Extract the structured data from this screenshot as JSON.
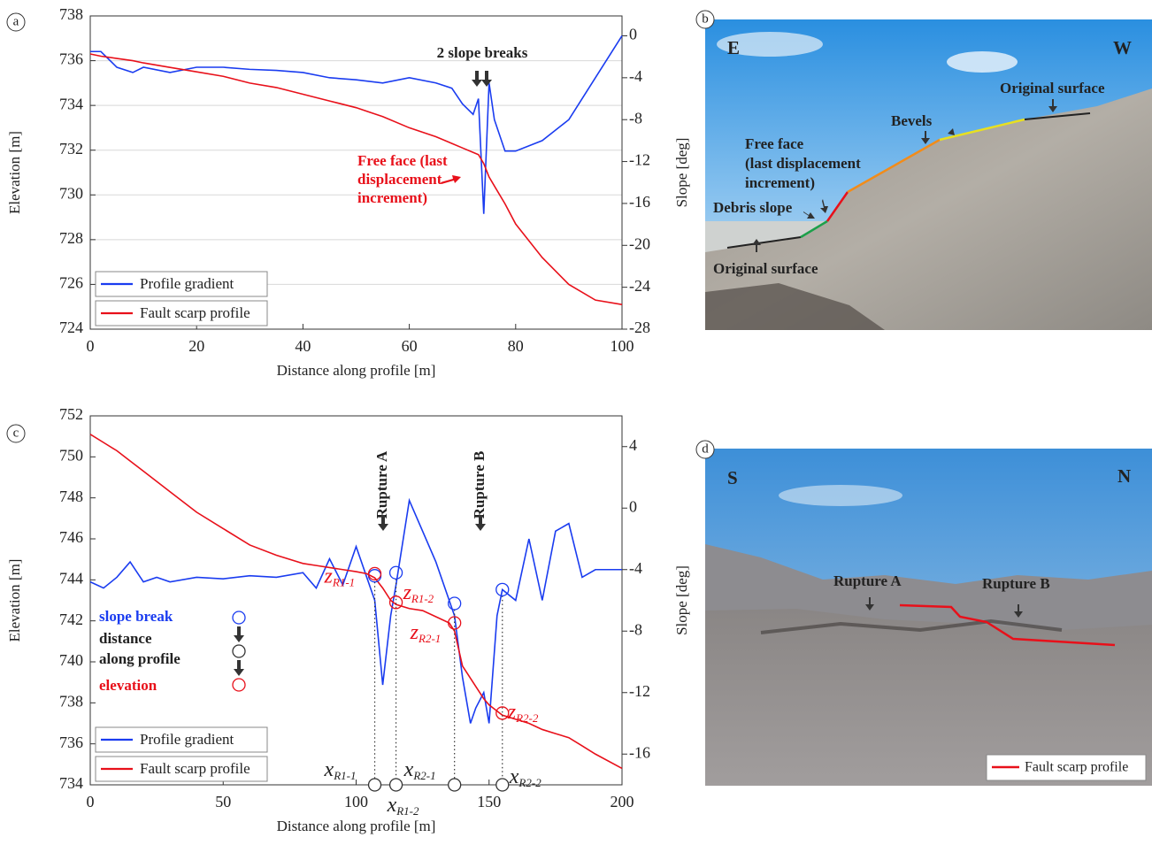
{
  "chart_data": [
    {
      "type": "line",
      "panel_label": "a",
      "xlabel": "Distance along profile [m]",
      "ylabel": "Elevation [m]",
      "y2label": "Slope [deg]",
      "xlim": [
        0,
        100
      ],
      "xticks": [
        0,
        20,
        40,
        60,
        80,
        100
      ],
      "ylim": [
        724,
        738
      ],
      "yticks": [
        724,
        726,
        728,
        730,
        732,
        734,
        736,
        738
      ],
      "y2lim": [
        -28,
        1.9
      ],
      "y2ticks": [
        -28,
        -24,
        -20,
        -16,
        -12,
        -8,
        -4,
        0
      ],
      "grid": true,
      "legend": "lower left",
      "x": [
        0,
        2,
        5,
        8,
        10,
        15,
        20,
        25,
        30,
        35,
        40,
        45,
        50,
        55,
        60,
        65,
        68,
        70,
        72,
        73,
        74,
        75,
        76,
        78,
        80,
        85,
        90,
        95,
        100
      ],
      "series": [
        {
          "name": "Profile gradient",
          "color": "#1a3cf0",
          "axis": "y2",
          "values": [
            -1.5,
            -1.5,
            -3,
            -3.5,
            -3,
            -3.5,
            -3,
            -3,
            -3.2,
            -3.3,
            -3.5,
            -4,
            -4.2,
            -4.5,
            -4,
            -4.5,
            -5,
            -6.5,
            -7.5,
            -6,
            -17,
            -4.5,
            -8,
            -11,
            -11,
            -10,
            -8,
            -4,
            0
          ]
        },
        {
          "name": "Fault scarp profile",
          "color": "#e8101a",
          "values": [
            736.3,
            736.2,
            736.1,
            736.0,
            735.9,
            735.7,
            735.5,
            735.3,
            735.0,
            734.8,
            734.5,
            734.2,
            733.9,
            733.5,
            733.0,
            732.6,
            732.3,
            732.1,
            731.9,
            731.8,
            731.4,
            730.8,
            730.4,
            729.6,
            728.7,
            727.2,
            726.0,
            725.3,
            725.1
          ]
        }
      ],
      "slope_breaks_label": "2 slope breaks",
      "free_face_label": [
        "Free face (last",
        "displacement",
        "increment)"
      ]
    },
    {
      "type": "line",
      "panel_label": "c",
      "xlabel": "Distance along profile [m]",
      "ylabel": "Elevation [m]",
      "y2label": "Slope [deg]",
      "xlim": [
        0,
        200
      ],
      "xticks": [
        0,
        50,
        100,
        150,
        200
      ],
      "ylim": [
        734,
        752
      ],
      "yticks": [
        734,
        736,
        738,
        740,
        742,
        744,
        746,
        748,
        750,
        752
      ],
      "y2lim": [
        -18,
        6
      ],
      "y2ticks": [
        -16,
        -12,
        -8,
        -4,
        0,
        4
      ],
      "grid": false,
      "legend": "lower left",
      "x": [
        0,
        5,
        10,
        15,
        20,
        25,
        30,
        40,
        50,
        60,
        70,
        80,
        85,
        90,
        95,
        100,
        104,
        107,
        110,
        113,
        115,
        120,
        125,
        130,
        135,
        137,
        140,
        143,
        145,
        148,
        150,
        153,
        155,
        160,
        165,
        170,
        175,
        180,
        185,
        190,
        200
      ],
      "series": [
        {
          "name": "Profile gradient",
          "color": "#1a3cf0",
          "axis": "y2",
          "values": [
            -4.8,
            -5.2,
            -4.5,
            -3.5,
            -4.8,
            -4.5,
            -4.8,
            -4.5,
            -4.6,
            -4.4,
            -4.5,
            -4.2,
            -5.2,
            -3.3,
            -5.0,
            -2.5,
            -4.5,
            -6,
            -11.5,
            -7,
            -5,
            0.5,
            -1.5,
            -3.5,
            -6,
            -7,
            -11,
            -14,
            -13,
            -12,
            -14,
            -7,
            -5.3,
            -6,
            -2,
            -6,
            -1.5,
            -1,
            -4.5,
            -4,
            -4
          ]
        },
        {
          "name": "Fault scarp profile",
          "color": "#e8101a",
          "values": [
            751.1,
            750.7,
            750.3,
            749.8,
            749.3,
            748.8,
            748.3,
            747.3,
            746.5,
            745.7,
            745.2,
            744.8,
            744.7,
            744.6,
            744.5,
            744.4,
            744.3,
            744.1,
            743.6,
            743.0,
            742.8,
            742.6,
            742.5,
            742.2,
            741.9,
            741.5,
            739.8,
            739.2,
            738.8,
            738.2,
            737.9,
            737.6,
            737.4,
            737.2,
            737.0,
            736.7,
            736.5,
            736.3,
            735.9,
            735.5,
            734.8
          ]
        }
      ],
      "rupture_labels": [
        "Rupture A",
        "Rupture B"
      ],
      "key": {
        "slope_break": "slope break",
        "distance": [
          "distance",
          "along profile"
        ],
        "elevation": "elevation"
      },
      "z_symbol": "z",
      "x_symbol": "x",
      "slope_breaks": [
        {
          "name": "R1-1",
          "x": 107,
          "slope": -4.4,
          "elevation": 744.3
        },
        {
          "name": "R1-2",
          "x": 115,
          "slope": -4.2,
          "elevation": 742.9
        },
        {
          "name": "R2-1",
          "x": 137,
          "slope": -6.2,
          "elevation": 741.9
        },
        {
          "name": "R2-2",
          "x": 155,
          "slope": -5.3,
          "elevation": 737.5
        }
      ]
    }
  ],
  "photos": [
    {
      "panel_label": "b",
      "left": "E",
      "right": "W",
      "texts": [
        "Original surface",
        "Bevels",
        "Free face",
        "(last displacement",
        "increment)",
        "Debris slope",
        "Original surface"
      ]
    },
    {
      "panel_label": "d",
      "left": "S",
      "right": "N",
      "texts": [
        "Rupture A",
        "Rupture B"
      ],
      "legend": "Fault scarp profile"
    }
  ]
}
